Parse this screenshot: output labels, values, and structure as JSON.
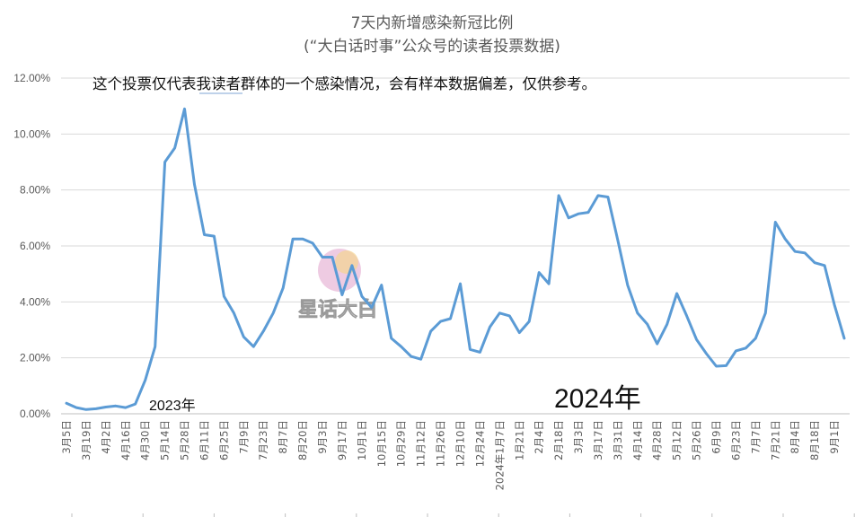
{
  "chart_data": {
    "type": "line",
    "title": "7天内新增感染新冠比例",
    "subtitle": "(“大白话时事”公众号的读者投票数据)",
    "annotation": "这个投票仅代表我读者群体的一个感染情况，会有样本数据偏差，仅供参考。",
    "year_labels": [
      "2023年",
      "2024年"
    ],
    "watermark": "星话大白",
    "ylim": [
      0,
      0.12
    ],
    "y_ticks": [
      "0.00%",
      "2.00%",
      "4.00%",
      "6.00%",
      "8.00%",
      "10.00%",
      "12.00%"
    ],
    "x_tick_labels": [
      "3月5日",
      "3月19日",
      "4月2日",
      "4月16日",
      "4月30日",
      "5月14日",
      "5月28日",
      "6月11日",
      "6月25日",
      "7月9日",
      "7月23日",
      "8月7日",
      "8月20日",
      "9月3日",
      "9月17日",
      "10月1日",
      "10月15日",
      "10月29日",
      "11月12日",
      "11月26日",
      "12月10日",
      "12月24日",
      "2024年1月7日",
      "1月21日",
      "2月4日",
      "2月18日",
      "3月3日",
      "3月17日",
      "3月31日",
      "4月14日",
      "4月28日",
      "5月12日",
      "5月26日",
      "6月9日",
      "6月23日",
      "7月7日",
      "7月21日",
      "8月4日",
      "8月18日",
      "9月1日"
    ],
    "grid": true,
    "color": "#5b9bd5",
    "series": [
      {
        "values": [
          0.38,
          0.22,
          0.15,
          0.18,
          0.24,
          0.28,
          0.22,
          0.35,
          1.2,
          2.4,
          9.0,
          9.5,
          10.9,
          8.2,
          6.4,
          6.35,
          4.2,
          3.6,
          2.75,
          2.4,
          2.95,
          3.6,
          4.5,
          6.25,
          6.25,
          6.1,
          5.6,
          5.6,
          4.25,
          5.3,
          4.2,
          3.8,
          4.6,
          2.7,
          2.4,
          2.05,
          1.95,
          2.95,
          3.3,
          3.4,
          4.65,
          2.3,
          2.2,
          3.1,
          3.6,
          3.5,
          2.9,
          3.3,
          5.05,
          4.65,
          7.8,
          7.0,
          7.15,
          7.2,
          7.8,
          7.75,
          6.2,
          4.6,
          3.6,
          3.2,
          2.5,
          3.2,
          4.3,
          3.5,
          2.65,
          2.15,
          1.7,
          1.72,
          2.25,
          2.35,
          2.7,
          3.6,
          6.85,
          6.25,
          5.8,
          5.75,
          5.4,
          5.3,
          3.9,
          2.7
        ]
      }
    ]
  }
}
